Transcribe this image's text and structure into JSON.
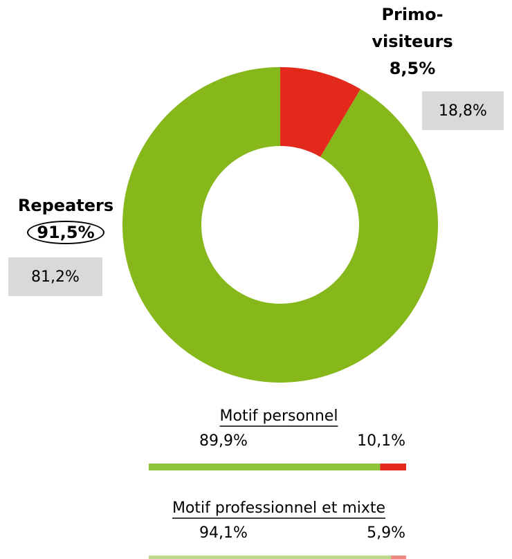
{
  "chart_data": [
    {
      "type": "pie",
      "categories": [
        "Primo-visiteurs",
        "Repeaters"
      ],
      "values": [
        8.5,
        91.5
      ],
      "value_labels": [
        "8,5%",
        "91,5%"
      ],
      "colors": [
        "#e2291c",
        "#86b81b"
      ],
      "reference_values": [
        18.8,
        81.2
      ],
      "reference_labels": [
        "18,8%",
        "81,2%"
      ]
    },
    {
      "type": "bar",
      "title": "Motif personnel",
      "values": [
        89.9,
        10.1
      ],
      "value_labels": [
        "89,9%",
        "10,1%"
      ],
      "colors": [
        "#8fc43a",
        "#e2291c"
      ],
      "xlim": [
        0,
        100
      ]
    },
    {
      "type": "bar",
      "title": "Motif professionnel et mixte",
      "values": [
        94.1,
        5.9
      ],
      "value_labels": [
        "94,1%",
        "5,9%"
      ],
      "colors": [
        "#bcdc8c",
        "#f08a80"
      ],
      "xlim": [
        0,
        100
      ]
    }
  ]
}
